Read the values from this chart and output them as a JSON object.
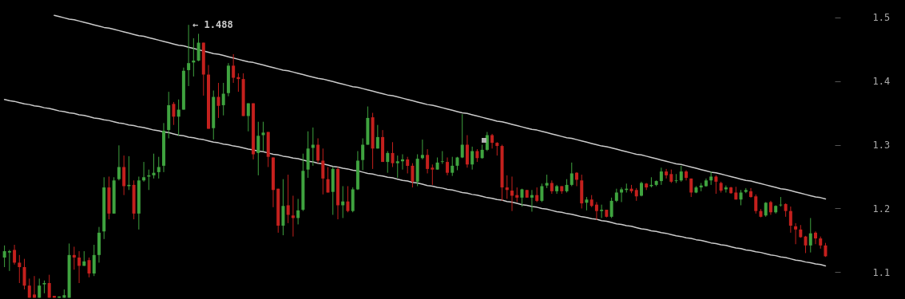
{
  "chart_data": {
    "type": "candlestick",
    "categories": [
      null,
      null,
      null,
      null,
      null,
      null,
      null,
      null,
      null,
      null,
      null,
      null,
      null,
      null,
      null,
      null,
      null,
      null,
      null,
      null,
      null,
      null,
      null,
      null,
      null,
      null,
      null,
      null,
      null,
      null,
      null,
      null,
      null,
      null,
      null,
      null,
      null,
      null,
      null,
      null,
      null,
      null,
      null,
      null,
      null,
      null,
      null,
      null,
      null,
      null,
      null,
      null,
      null,
      null,
      null,
      null,
      null,
      null,
      null,
      null,
      null,
      null,
      null,
      null,
      null,
      null,
      null,
      null,
      null,
      null,
      null,
      null,
      null,
      null,
      null,
      null,
      null,
      null,
      null,
      null,
      null,
      null,
      null,
      null,
      null,
      null,
      null,
      null,
      null,
      null,
      null,
      null,
      null,
      null,
      null,
      null,
      null,
      null,
      null,
      null,
      null,
      null,
      null,
      null,
      null,
      null,
      null,
      null,
      null,
      null,
      null,
      null,
      null,
      null,
      null,
      null,
      null,
      null,
      null,
      null,
      null,
      null,
      null,
      null,
      null,
      null,
      null,
      null,
      null,
      null,
      null,
      null,
      null,
      null,
      null,
      null,
      null,
      null,
      null,
      null,
      null,
      null,
      null,
      null,
      null,
      null,
      null,
      null,
      null,
      null,
      null,
      null,
      null,
      null,
      null,
      null,
      null,
      null,
      null,
      null,
      null,
      null,
      null,
      null,
      null,
      null
    ],
    "ohlc": [
      [
        1.123,
        1.142,
        1.108,
        1.133
      ],
      [
        1.131,
        1.135,
        1.102,
        1.133
      ],
      [
        1.135,
        1.143,
        1.112,
        1.115
      ],
      [
        1.115,
        1.127,
        1.083,
        1.108
      ],
      [
        1.108,
        1.121,
        1.073,
        1.079
      ],
      [
        1.079,
        1.09,
        1.06,
        1.06
      ],
      [
        1.065,
        1.094,
        1.06,
        1.06
      ],
      [
        1.06,
        1.09,
        1.06,
        1.079
      ],
      [
        1.081,
        1.087,
        1.067,
        1.083
      ],
      [
        1.083,
        1.096,
        1.06,
        1.06
      ],
      [
        1.063,
        1.063,
        1.06,
        1.06
      ],
      [
        1.06,
        1.062,
        1.06,
        1.062
      ],
      [
        1.06,
        1.073,
        1.06,
        1.064
      ],
      [
        1.06,
        1.145,
        1.06,
        1.127
      ],
      [
        1.127,
        1.14,
        1.104,
        1.123
      ],
      [
        1.123,
        1.133,
        1.083,
        1.11
      ],
      [
        1.11,
        1.133,
        1.11,
        1.117
      ],
      [
        1.119,
        1.123,
        1.092,
        1.098
      ],
      [
        1.098,
        1.143,
        1.094,
        1.127
      ],
      [
        1.127,
        1.171,
        1.115,
        1.162
      ],
      [
        1.164,
        1.249,
        1.152,
        1.233
      ],
      [
        1.233,
        1.25,
        1.183,
        1.192
      ],
      [
        1.192,
        1.249,
        1.192,
        1.244
      ],
      [
        1.246,
        1.299,
        1.244,
        1.265
      ],
      [
        1.265,
        1.283,
        1.221,
        1.235
      ],
      [
        1.235,
        1.282,
        1.229,
        1.237
      ],
      [
        1.237,
        1.244,
        1.183,
        1.192
      ],
      [
        1.192,
        1.25,
        1.167,
        1.244
      ],
      [
        1.244,
        1.273,
        1.242,
        1.249
      ],
      [
        1.25,
        1.261,
        1.229,
        1.252
      ],
      [
        1.252,
        1.286,
        1.247,
        1.256
      ],
      [
        1.257,
        1.281,
        1.247,
        1.265
      ],
      [
        1.267,
        1.334,
        1.257,
        1.322
      ],
      [
        1.323,
        1.383,
        1.31,
        1.362
      ],
      [
        1.364,
        1.367,
        1.331,
        1.344
      ],
      [
        1.344,
        1.371,
        1.314,
        1.355
      ],
      [
        1.355,
        1.421,
        1.355,
        1.416
      ],
      [
        1.417,
        1.488,
        1.392,
        1.428
      ],
      [
        1.429,
        1.467,
        1.407,
        1.432
      ],
      [
        1.432,
        1.474,
        1.431,
        1.46
      ],
      [
        1.46,
        1.46,
        1.377,
        1.41
      ],
      [
        1.41,
        1.425,
        1.325,
        1.325
      ],
      [
        1.326,
        1.385,
        1.308,
        1.375
      ],
      [
        1.375,
        1.397,
        1.342,
        1.361
      ],
      [
        1.362,
        1.397,
        1.346,
        1.38
      ],
      [
        1.381,
        1.428,
        1.376,
        1.424
      ],
      [
        1.424,
        1.442,
        1.397,
        1.405
      ],
      [
        1.406,
        1.412,
        1.383,
        1.403
      ],
      [
        1.403,
        1.412,
        1.345,
        1.345
      ],
      [
        1.345,
        1.365,
        1.321,
        1.365
      ],
      [
        1.365,
        1.365,
        1.277,
        1.285
      ],
      [
        1.287,
        1.336,
        1.252,
        1.314
      ],
      [
        1.315,
        1.336,
        1.29,
        1.319
      ],
      [
        1.32,
        1.32,
        1.265,
        1.281
      ],
      [
        1.28,
        1.28,
        1.202,
        1.229
      ],
      [
        1.231,
        1.231,
        1.162,
        1.173
      ],
      [
        1.173,
        1.246,
        1.158,
        1.204
      ],
      [
        1.205,
        1.253,
        1.177,
        1.19
      ],
      [
        1.189,
        1.22,
        1.156,
        1.185
      ],
      [
        1.185,
        1.215,
        1.175,
        1.197
      ],
      [
        1.198,
        1.286,
        1.196,
        1.259
      ],
      [
        1.261,
        1.321,
        1.248,
        1.294
      ],
      [
        1.295,
        1.327,
        1.267,
        1.3
      ],
      [
        1.3,
        1.31,
        1.271,
        1.275
      ],
      [
        1.275,
        1.294,
        1.222,
        1.247
      ],
      [
        1.246,
        1.265,
        1.225,
        1.225
      ],
      [
        1.226,
        1.265,
        1.19,
        1.262
      ],
      [
        1.262,
        1.265,
        1.183,
        1.205
      ],
      [
        1.205,
        1.235,
        1.185,
        1.211
      ],
      [
        1.211,
        1.235,
        1.194,
        1.196
      ],
      [
        1.196,
        1.233,
        1.194,
        1.23
      ],
      [
        1.23,
        1.29,
        1.229,
        1.275
      ],
      [
        1.276,
        1.31,
        1.26,
        1.3
      ],
      [
        1.3,
        1.36,
        1.3,
        1.342
      ],
      [
        1.343,
        1.35,
        1.262,
        1.294
      ],
      [
        1.294,
        1.331,
        1.294,
        1.312
      ],
      [
        1.312,
        1.323,
        1.273,
        1.273
      ],
      [
        1.273,
        1.29,
        1.256,
        1.287
      ],
      [
        1.287,
        1.304,
        1.265,
        1.271
      ],
      [
        1.271,
        1.283,
        1.248,
        1.274
      ],
      [
        1.274,
        1.285,
        1.261,
        1.277
      ],
      [
        1.277,
        1.281,
        1.255,
        1.267
      ],
      [
        1.267,
        1.271,
        1.233,
        1.242
      ],
      [
        1.242,
        1.285,
        1.235,
        1.278
      ],
      [
        1.279,
        1.308,
        1.277,
        1.284
      ],
      [
        1.284,
        1.293,
        1.255,
        1.262
      ],
      [
        1.264,
        1.269,
        1.237,
        1.261
      ],
      [
        1.261,
        1.28,
        1.261,
        1.272
      ],
      [
        1.273,
        1.29,
        1.27,
        1.274
      ],
      [
        1.273,
        1.28,
        1.252,
        1.256
      ],
      [
        1.256,
        1.281,
        1.251,
        1.267
      ],
      [
        1.267,
        1.281,
        1.26,
        1.28
      ],
      [
        1.28,
        1.348,
        1.279,
        1.3
      ],
      [
        1.3,
        1.315,
        1.264,
        1.269
      ],
      [
        1.269,
        1.297,
        1.261,
        1.29
      ],
      [
        1.29,
        1.293,
        1.273,
        1.279
      ],
      [
        1.279,
        1.3,
        1.278,
        1.292
      ],
      [
        1.292,
        1.32,
        1.29,
        1.315
      ],
      [
        1.315,
        1.317,
        1.294,
        1.303
      ],
      [
        1.303,
        1.304,
        1.283,
        1.298
      ],
      [
        1.298,
        1.3,
        1.212,
        1.233
      ],
      [
        1.233,
        1.252,
        1.215,
        1.229
      ],
      [
        1.228,
        1.25,
        1.196,
        1.22
      ],
      [
        1.221,
        1.233,
        1.21,
        1.217
      ],
      [
        1.217,
        1.231,
        1.203,
        1.23
      ],
      [
        1.229,
        1.229,
        1.217,
        1.217
      ],
      [
        1.217,
        1.229,
        1.195,
        1.221
      ],
      [
        1.221,
        1.233,
        1.21,
        1.212
      ],
      [
        1.212,
        1.239,
        1.21,
        1.235
      ],
      [
        1.236,
        1.253,
        1.232,
        1.24
      ],
      [
        1.24,
        1.244,
        1.223,
        1.227
      ],
      [
        1.227,
        1.237,
        1.223,
        1.235
      ],
      [
        1.235,
        1.235,
        1.223,
        1.227
      ],
      [
        1.227,
        1.246,
        1.225,
        1.237
      ],
      [
        1.237,
        1.272,
        1.235,
        1.255
      ],
      [
        1.256,
        1.257,
        1.235,
        1.245
      ],
      [
        1.244,
        1.253,
        1.2,
        1.208
      ],
      [
        1.209,
        1.218,
        1.197,
        1.214
      ],
      [
        1.214,
        1.221,
        1.202,
        1.204
      ],
      [
        1.206,
        1.21,
        1.182,
        1.196
      ],
      [
        1.196,
        1.206,
        1.185,
        1.198
      ],
      [
        1.198,
        1.198,
        1.186,
        1.187
      ],
      [
        1.187,
        1.217,
        1.185,
        1.212
      ],
      [
        1.212,
        1.231,
        1.21,
        1.225
      ],
      [
        1.225,
        1.233,
        1.21,
        1.23
      ],
      [
        1.229,
        1.239,
        1.225,
        1.231
      ],
      [
        1.231,
        1.237,
        1.224,
        1.227
      ],
      [
        1.229,
        1.232,
        1.212,
        1.219
      ],
      [
        1.22,
        1.242,
        1.219,
        1.24
      ],
      [
        1.239,
        1.24,
        1.229,
        1.233
      ],
      [
        1.235,
        1.249,
        1.233,
        1.237
      ],
      [
        1.237,
        1.244,
        1.235,
        1.243
      ],
      [
        1.243,
        1.264,
        1.237,
        1.258
      ],
      [
        1.258,
        1.262,
        1.247,
        1.252
      ],
      [
        1.254,
        1.261,
        1.24,
        1.242
      ],
      [
        1.243,
        1.254,
        1.24,
        1.244
      ],
      [
        1.244,
        1.267,
        1.242,
        1.258
      ],
      [
        1.258,
        1.26,
        1.244,
        1.248
      ],
      [
        1.247,
        1.247,
        1.218,
        1.225
      ],
      [
        1.225,
        1.235,
        1.224,
        1.233
      ],
      [
        1.233,
        1.24,
        1.227,
        1.236
      ],
      [
        1.235,
        1.247,
        1.234,
        1.244
      ],
      [
        1.244,
        1.258,
        1.237,
        1.25
      ],
      [
        1.25,
        1.252,
        1.223,
        1.242
      ],
      [
        1.24,
        1.242,
        1.225,
        1.228
      ],
      [
        1.23,
        1.236,
        1.225,
        1.233
      ],
      [
        1.233,
        1.234,
        1.223,
        1.224
      ],
      [
        1.225,
        1.234,
        1.214,
        1.214
      ],
      [
        1.214,
        1.229,
        1.205,
        1.225
      ],
      [
        1.226,
        1.232,
        1.224,
        1.229
      ],
      [
        1.227,
        1.232,
        1.217,
        1.218
      ],
      [
        1.219,
        1.222,
        1.192,
        1.196
      ],
      [
        1.196,
        1.199,
        1.186,
        1.187
      ],
      [
        1.189,
        1.21,
        1.187,
        1.209
      ],
      [
        1.21,
        1.212,
        1.19,
        1.194
      ],
      [
        1.194,
        1.205,
        1.192,
        1.204
      ],
      [
        1.205,
        1.218,
        1.203,
        1.206
      ],
      [
        1.207,
        1.208,
        1.187,
        1.196
      ],
      [
        1.196,
        1.203,
        1.162,
        1.173
      ],
      [
        1.172,
        1.177,
        1.144,
        1.167
      ],
      [
        1.167,
        1.174,
        1.154,
        1.155
      ],
      [
        1.156,
        1.157,
        1.13,
        1.142
      ],
      [
        1.142,
        1.185,
        1.131,
        1.161
      ],
      [
        1.162,
        1.164,
        1.144,
        1.153
      ],
      [
        1.153,
        1.156,
        1.137,
        1.142
      ],
      [
        1.142,
        1.146,
        1.124,
        1.125
      ]
    ],
    "colors": [
      "#3fa33f",
      "#3fa33f",
      "#c4201d",
      "#c4201d",
      "#c4201d",
      "#c4201d",
      "#c4201d",
      "#3fa33f",
      "#3fa33f",
      "#c4201d",
      "#c4201d",
      "#3fa33f",
      "#3fa33f",
      "#3fa33f",
      "#c4201d",
      "#c4201d",
      "#3fa33f",
      "#c4201d",
      "#3fa33f",
      "#3fa33f",
      "#3fa33f",
      "#c4201d",
      "#3fa33f",
      "#3fa33f",
      "#c4201d",
      "#3fa33f",
      "#c4201d",
      "#3fa33f",
      "#3fa33f",
      "#3fa33f",
      "#3fa33f",
      "#3fa33f",
      "#3fa33f",
      "#3fa33f",
      "#c4201d",
      "#3fa33f",
      "#3fa33f",
      "#3fa33f",
      "#3fa33f",
      "#3fa33f",
      "#c4201d",
      "#c4201d",
      "#3fa33f",
      "#c4201d",
      "#3fa33f",
      "#3fa33f",
      "#c4201d",
      "#c4201d",
      "#c4201d",
      "#3fa33f",
      "#c4201d",
      "#3fa33f",
      "#3fa33f",
      "#c4201d",
      "#c4201d",
      "#c4201d",
      "#3fa33f",
      "#c4201d",
      "#c4201d",
      "#3fa33f",
      "#3fa33f",
      "#3fa33f",
      "#3fa33f",
      "#c4201d",
      "#c4201d",
      "#c4201d",
      "#3fa33f",
      "#c4201d",
      "#3fa33f",
      "#c4201d",
      "#3fa33f",
      "#3fa33f",
      "#3fa33f",
      "#3fa33f",
      "#c4201d",
      "#3fa33f",
      "#c4201d",
      "#3fa33f",
      "#c4201d",
      "#3fa33f",
      "#3fa33f",
      "#c4201d",
      "#c4201d",
      "#3fa33f",
      "#3fa33f",
      "#c4201d",
      "#c4201d",
      "#3fa33f",
      "#3fa33f",
      "#c4201d",
      "#3fa33f",
      "#3fa33f",
      "#3fa33f",
      "#c4201d",
      "#3fa33f",
      "#c4201d",
      "#3fa33f",
      "#3fa33f",
      "#c4201d",
      "#c4201d",
      "#c4201d",
      "#c4201d",
      "#c4201d",
      "#c4201d",
      "#3fa33f",
      "#c4201d",
      "#3fa33f",
      "#c4201d",
      "#3fa33f",
      "#3fa33f",
      "#c4201d",
      "#3fa33f",
      "#c4201d",
      "#3fa33f",
      "#3fa33f",
      "#c4201d",
      "#c4201d",
      "#3fa33f",
      "#c4201d",
      "#c4201d",
      "#3fa33f",
      "#c4201d",
      "#3fa33f",
      "#3fa33f",
      "#3fa33f",
      "#3fa33f",
      "#c4201d",
      "#c4201d",
      "#3fa33f",
      "#c4201d",
      "#3fa33f",
      "#3fa33f",
      "#3fa33f",
      "#c4201d",
      "#c4201d",
      "#3fa33f",
      "#3fa33f",
      "#c4201d",
      "#c4201d",
      "#3fa33f",
      "#3fa33f",
      "#3fa33f",
      "#3fa33f",
      "#c4201d",
      "#c4201d",
      "#3fa33f",
      "#c4201d",
      "#c4201d",
      "#3fa33f",
      "#3fa33f",
      "#c4201d",
      "#c4201d",
      "#c4201d",
      "#3fa33f",
      "#c4201d",
      "#3fa33f",
      "#3fa33f",
      "#c4201d",
      "#c4201d",
      "#c4201d",
      "#c4201d",
      "#c4201d",
      "#3fa33f",
      "#c4201d",
      "#c4201d",
      "#c4201d"
    ],
    "series": [
      {
        "type": "line",
        "color": "#cccccc",
        "values": [
          null,
          null,
          null,
          null,
          null,
          null,
          null,
          null,
          null,
          null,
          1.503,
          1.501,
          1.499,
          1.497,
          1.496,
          1.494,
          1.492,
          1.49,
          1.488,
          1.486,
          1.484,
          1.483,
          1.481,
          1.479,
          1.477,
          1.475,
          1.473,
          1.471,
          1.47,
          1.468,
          1.466,
          1.464,
          1.462,
          1.46,
          1.458,
          1.456,
          1.455,
          1.453,
          1.451,
          1.449,
          1.447,
          1.445,
          1.443,
          1.442,
          1.44,
          1.438,
          1.436,
          1.434,
          1.432,
          1.43,
          1.429,
          1.427,
          1.425,
          1.423,
          1.421,
          1.419,
          1.417,
          1.416,
          1.414,
          1.412,
          1.41,
          1.408,
          1.406,
          1.404,
          1.403,
          1.401,
          1.399,
          1.397,
          1.395,
          1.393,
          1.391,
          1.39,
          1.388,
          1.386,
          1.384,
          1.382,
          1.38,
          1.378,
          1.377,
          1.375,
          1.373,
          1.371,
          1.369,
          1.367,
          1.365,
          1.363,
          1.362,
          1.36,
          1.358,
          1.356,
          1.354,
          1.352,
          1.35,
          1.349,
          1.347,
          1.345,
          1.343,
          1.341,
          1.339,
          1.337,
          1.336,
          1.334,
          1.332,
          1.33,
          1.328,
          1.326,
          1.324,
          1.323,
          1.321,
          1.319,
          1.317,
          1.315,
          1.313,
          1.311,
          1.31,
          1.308,
          1.306,
          1.304,
          1.302,
          1.3,
          1.298,
          1.297,
          1.295,
          1.293,
          1.291,
          1.289,
          1.287,
          1.285,
          1.284,
          1.282,
          1.28,
          1.278,
          1.276,
          1.274,
          1.272,
          1.27,
          1.269,
          1.267,
          1.265,
          1.263,
          1.261,
          1.259,
          1.257,
          1.256,
          1.254,
          1.252,
          1.25,
          1.248,
          1.246,
          1.244,
          1.243,
          1.241,
          1.239,
          1.237,
          1.235,
          1.233,
          1.231,
          1.23,
          1.228,
          1.226,
          1.224,
          1.222,
          1.22,
          1.218,
          1.217,
          1.215
        ]
      },
      {
        "type": "line",
        "color": "#cccccc",
        "values": [
          1.371,
          1.369,
          1.368,
          1.366,
          1.364,
          1.363,
          1.361,
          1.36,
          1.358,
          1.357,
          1.355,
          1.353,
          1.352,
          1.35,
          1.349,
          1.347,
          1.346,
          1.344,
          1.342,
          1.341,
          1.339,
          1.338,
          1.336,
          1.334,
          1.333,
          1.331,
          1.33,
          1.328,
          1.327,
          1.325,
          1.323,
          1.322,
          1.32,
          1.319,
          1.317,
          1.315,
          1.314,
          1.312,
          1.311,
          1.309,
          1.308,
          1.306,
          1.304,
          1.303,
          1.301,
          1.3,
          1.298,
          1.297,
          1.295,
          1.293,
          1.292,
          1.29,
          1.289,
          1.287,
          1.285,
          1.284,
          1.282,
          1.281,
          1.279,
          1.278,
          1.276,
          1.274,
          1.273,
          1.271,
          1.27,
          1.268,
          1.266,
          1.265,
          1.263,
          1.262,
          1.26,
          1.259,
          1.257,
          1.255,
          1.254,
          1.252,
          1.251,
          1.249,
          1.248,
          1.246,
          1.244,
          1.243,
          1.241,
          1.24,
          1.238,
          1.236,
          1.235,
          1.233,
          1.232,
          1.23,
          1.229,
          1.227,
          1.225,
          1.224,
          1.222,
          1.221,
          1.219,
          1.217,
          1.216,
          1.214,
          1.213,
          1.211,
          1.21,
          1.208,
          1.206,
          1.205,
          1.203,
          1.202,
          1.2,
          1.199,
          1.197,
          1.195,
          1.194,
          1.192,
          1.191,
          1.189,
          1.187,
          1.186,
          1.184,
          1.183,
          1.181,
          1.18,
          1.178,
          1.176,
          1.175,
          1.173,
          1.172,
          1.17,
          1.168,
          1.167,
          1.165,
          1.164,
          1.162,
          1.161,
          1.159,
          1.157,
          1.156,
          1.154,
          1.153,
          1.151,
          1.15,
          1.148,
          1.146,
          1.145,
          1.143,
          1.142,
          1.14,
          1.138,
          1.137,
          1.135,
          1.134,
          1.132,
          1.131,
          1.129,
          1.127,
          1.126,
          1.124,
          1.123,
          1.121,
          1.119,
          1.118,
          1.116,
          1.115,
          1.113,
          1.112,
          1.11
        ]
      }
    ],
    "annotations": [
      "← 1.488"
    ],
    "ylim": [
      1.058,
      1.527
    ],
    "yticks": [
      1.1,
      1.2,
      1.3,
      1.4,
      1.5
    ],
    "tick_labels": "y"
  }
}
